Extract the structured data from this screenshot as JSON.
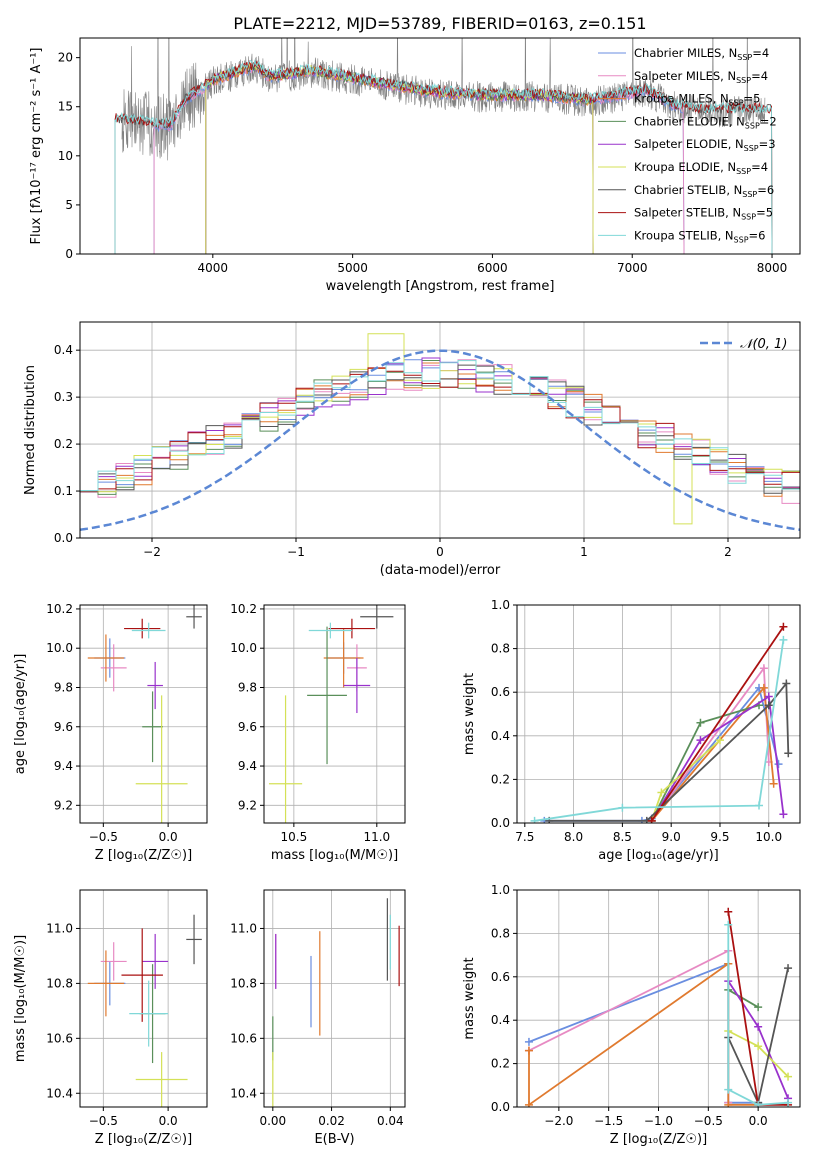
{
  "figure_title": "PLATE=2212, MJD=53789, FIBERID=0163, z=0.151",
  "colors": [
    "#6a8ee0",
    "#e78ac3",
    "#e07a2f",
    "#5a8f5a",
    "#9932cc",
    "#d4e157",
    "#555555",
    "#aa1111",
    "#80d8d8"
  ],
  "chart_data": [
    {
      "id": "spectrum",
      "type": "line",
      "xlabel": "wavelength [Angstrom, rest frame]",
      "ylabel": "Flux [fλ10⁻¹⁷ erg cm⁻² s⁻¹ A⁻¹]",
      "xlim": [
        3050,
        8200
      ],
      "ylim": [
        0,
        22
      ],
      "xticks": [
        4000,
        5000,
        6000,
        7000,
        8000
      ],
      "yticks": [
        0,
        5,
        10,
        15,
        20
      ],
      "grid": false,
      "legend_position": "upper-right",
      "legend": [
        {
          "label": "Chabrier MILES, N",
          "sub": "SSP",
          "tail": "=4"
        },
        {
          "label": "Salpeter MILES, N",
          "sub": "SSP",
          "tail": "=4"
        },
        {
          "label": "Kroupa MILES, N",
          "sub": "SSP",
          "tail": "=5"
        },
        {
          "label": "Chabrier ELODIE, N",
          "sub": "SSP",
          "tail": "=2"
        },
        {
          "label": "Salpeter ELODIE, N",
          "sub": "SSP",
          "tail": "=3"
        },
        {
          "label": "Kroupa ELODIE, N",
          "sub": "SSP",
          "tail": "=4"
        },
        {
          "label": "Chabrier STELIB, N",
          "sub": "SSP",
          "tail": "=6"
        },
        {
          "label": "Salpeter STELIB, N",
          "sub": "SSP",
          "tail": "=5"
        },
        {
          "label": "Kroupa STELIB, N",
          "sub": "SSP",
          "tail": "=6"
        }
      ],
      "data_color": "#808080",
      "data_range": [
        3350,
        7950
      ],
      "model_continuum": {
        "x": [
          3350,
          3600,
          3700,
          3800,
          3900,
          4000,
          4100,
          4200,
          4300,
          4400,
          4500,
          4700,
          4900,
          5100,
          5300,
          5500,
          5700,
          5900,
          6100,
          6300,
          6500,
          6700,
          6900,
          7100,
          7300,
          7500
        ],
        "y": [
          13.5,
          13.0,
          13.0,
          15.5,
          16.5,
          17.5,
          18.0,
          18.5,
          19.0,
          18.0,
          18.0,
          18.5,
          18.0,
          17.5,
          17.0,
          16.5,
          16.2,
          16.0,
          16.0,
          16.0,
          15.8,
          15.5,
          16.0,
          16.5,
          15.0,
          14.5
        ]
      },
      "model_ranges": [
        [
          3580,
          7370
        ],
        [
          3580,
          7370
        ],
        [
          3950,
          6720
        ],
        [
          3950,
          6720
        ],
        [
          3950,
          6720
        ],
        [
          3950,
          6720
        ],
        [
          3300,
          8000
        ],
        [
          3300,
          8000
        ],
        [
          3300,
          8000
        ]
      ]
    },
    {
      "id": "residuals",
      "type": "histogram",
      "xlabel": "(data-model)/error",
      "ylabel": "Normed distribution",
      "xlim": [
        -2.5,
        2.5
      ],
      "ylim": [
        0,
        0.46
      ],
      "xticks": [
        -2,
        -1,
        0,
        1,
        2
      ],
      "yticks": [
        0.0,
        0.1,
        0.2,
        0.3,
        0.4
      ],
      "grid": true,
      "legend_position": "upper-right",
      "gaussian_label": "𝒩(0, 1)",
      "bins": 40,
      "gaussian_color": "#5b87d4"
    },
    {
      "id": "z-age",
      "type": "scatter-errorbar",
      "xlabel": "Z [log₁₀(Z/Z☉)]",
      "ylabel": "age  [log₁₀(age/yr)]",
      "xlim": [
        -0.68,
        0.3
      ],
      "ylim": [
        9.11,
        10.22
      ],
      "xticks": [
        -0.5,
        0.0
      ],
      "yticks": [
        9.2,
        9.4,
        9.6,
        9.8,
        10.0,
        10.2
      ],
      "grid": true,
      "points": [
        {
          "x": -0.45,
          "y": 9.95,
          "xerr": 0.12,
          "yerr": 0.1
        },
        {
          "x": -0.42,
          "y": 9.9,
          "xerr": 0.1,
          "yerr": 0.12
        },
        {
          "x": -0.48,
          "y": 9.95,
          "xerr": 0.14,
          "yerr": 0.12
        },
        {
          "x": -0.12,
          "y": 9.6,
          "xerr": 0.08,
          "yerr": 0.18
        },
        {
          "x": -0.1,
          "y": 9.81,
          "xerr": 0.06,
          "yerr": 0.12
        },
        {
          "x": -0.05,
          "y": 9.31,
          "xerr": 0.2,
          "yerr": 0.45
        },
        {
          "x": 0.2,
          "y": 10.16,
          "xerr": 0.06,
          "yerr": 0.06
        },
        {
          "x": -0.2,
          "y": 10.1,
          "xerr": 0.14,
          "yerr": 0.05
        },
        {
          "x": -0.15,
          "y": 10.09,
          "xerr": 0.13,
          "yerr": 0.04
        }
      ]
    },
    {
      "id": "mass-age",
      "type": "scatter-errorbar",
      "xlabel": "mass [log₁₀(M/M☉)]",
      "ylabel": "",
      "xlim": [
        10.32,
        11.17
      ],
      "ylim": [
        9.11,
        10.22
      ],
      "xticks": [
        10.5,
        11.0
      ],
      "yticks": [
        9.2,
        9.4,
        9.6,
        9.8,
        10.0,
        10.2
      ],
      "grid": true,
      "points": [
        {
          "x": 10.8,
          "y": 9.95,
          "xerr": 0.1,
          "yerr": 0.08
        },
        {
          "x": 10.88,
          "y": 9.9,
          "xerr": 0.06,
          "yerr": 0.12
        },
        {
          "x": 10.8,
          "y": 9.95,
          "xerr": 0.12,
          "yerr": 0.15
        },
        {
          "x": 10.7,
          "y": 9.76,
          "xerr": 0.12,
          "yerr": 0.35
        },
        {
          "x": 10.88,
          "y": 9.81,
          "xerr": 0.08,
          "yerr": 0.14
        },
        {
          "x": 10.45,
          "y": 9.31,
          "xerr": 0.1,
          "yerr": 0.45
        },
        {
          "x": 11.0,
          "y": 10.16,
          "xerr": 0.1,
          "yerr": 0.06
        },
        {
          "x": 10.85,
          "y": 10.1,
          "xerr": 0.14,
          "yerr": 0.05
        },
        {
          "x": 10.72,
          "y": 10.09,
          "xerr": 0.13,
          "yerr": 0.04
        }
      ]
    },
    {
      "id": "age-weight",
      "type": "line",
      "xlabel": "age  [log₁₀(age/yr)]",
      "ylabel": "mass weight",
      "xlim": [
        7.42,
        10.32
      ],
      "ylim": [
        0,
        1.0
      ],
      "xticks": [
        7.5,
        8.0,
        8.5,
        9.0,
        9.5,
        10.0
      ],
      "yticks": [
        0.0,
        0.2,
        0.4,
        0.6,
        0.8,
        1.0
      ],
      "grid": true,
      "series": [
        {
          "x": [
            7.7,
            8.7,
            8.8,
            9.9,
            10.1
          ],
          "y": [
            0.01,
            0.01,
            0.02,
            0.62,
            0.27
          ]
        },
        {
          "x": [
            8.8,
            9.95,
            10.0
          ],
          "y": [
            0.01,
            0.71,
            0.28
          ]
        },
        {
          "x": [
            8.8,
            9.95,
            10.05
          ],
          "y": [
            0.01,
            0.62,
            0.18
          ]
        },
        {
          "x": [
            8.8,
            9.3,
            9.9
          ],
          "y": [
            0.01,
            0.46,
            0.54
          ]
        },
        {
          "x": [
            8.8,
            9.3,
            10.0,
            10.15
          ],
          "y": [
            0.01,
            0.38,
            0.58,
            0.04
          ]
        },
        {
          "x": [
            8.8,
            8.9,
            9.5
          ],
          "y": [
            0.01,
            0.14,
            0.38
          ]
        },
        {
          "x": [
            7.75,
            8.75,
            10.0,
            10.18,
            10.2
          ],
          "y": [
            0.01,
            0.01,
            0.54,
            0.64,
            0.32
          ]
        },
        {
          "x": [
            8.8,
            10.15
          ],
          "y": [
            0.01,
            0.9
          ]
        },
        {
          "x": [
            7.6,
            8.5,
            9.9,
            10.15
          ],
          "y": [
            0.01,
            0.07,
            0.08,
            0.84
          ]
        }
      ]
    },
    {
      "id": "z-mass",
      "type": "scatter-errorbar",
      "xlabel": "Z [log₁₀(Z/Z☉)]",
      "ylabel": "mass [log₁₀(M/M☉)]",
      "xlim": [
        -0.68,
        0.3
      ],
      "ylim": [
        10.35,
        11.14
      ],
      "xticks": [
        -0.5,
        0.0
      ],
      "yticks": [
        10.4,
        10.6,
        10.8,
        11.0
      ],
      "grid": true,
      "points": [
        {
          "x": -0.45,
          "y": 10.8,
          "xerr": 0.12,
          "yerr": 0.08
        },
        {
          "x": -0.42,
          "y": 10.88,
          "xerr": 0.1,
          "yerr": 0.07
        },
        {
          "x": -0.48,
          "y": 10.8,
          "xerr": 0.14,
          "yerr": 0.12
        },
        {
          "x": -0.12,
          "y": 10.69,
          "xerr": 0.1,
          "yerr": 0.18
        },
        {
          "x": -0.1,
          "y": 10.88,
          "xerr": 0.1,
          "yerr": 0.1
        },
        {
          "x": -0.05,
          "y": 10.45,
          "xerr": 0.2,
          "yerr": 0.1
        },
        {
          "x": 0.2,
          "y": 10.96,
          "xerr": 0.06,
          "yerr": 0.09
        },
        {
          "x": -0.2,
          "y": 10.83,
          "xerr": 0.16,
          "yerr": 0.17
        },
        {
          "x": -0.15,
          "y": 10.69,
          "xerr": 0.15,
          "yerr": 0.12
        }
      ]
    },
    {
      "id": "ebv-mass",
      "type": "scatter-errorbar",
      "xlabel": "E(B-V)",
      "ylabel": "",
      "xlim": [
        -0.003,
        0.045
      ],
      "ylim": [
        10.35,
        11.14
      ],
      "xticks": [
        0.0,
        0.02,
        0.04
      ],
      "yticks": [
        10.4,
        10.6,
        10.8,
        11.0
      ],
      "grid": true,
      "points": [
        {
          "x": 0.013,
          "y": 10.77,
          "xerr": 0,
          "yerr": 0.13
        },
        {
          "x": 0.001,
          "y": 10.88,
          "xerr": 0,
          "yerr": 0.1
        },
        {
          "x": 0.016,
          "y": 10.8,
          "xerr": 0,
          "yerr": 0.19
        },
        {
          "x": 0.0,
          "y": 10.6,
          "xerr": 0,
          "yerr": 0.08
        },
        {
          "x": 0.001,
          "y": 10.88,
          "xerr": 0,
          "yerr": 0.1
        },
        {
          "x": 0.0,
          "y": 10.45,
          "xerr": 0,
          "yerr": 0.1
        },
        {
          "x": 0.039,
          "y": 10.96,
          "xerr": 0,
          "yerr": 0.15
        },
        {
          "x": 0.043,
          "y": 10.9,
          "xerr": 0,
          "yerr": 0.11
        },
        {
          "x": 0.04,
          "y": 10.95,
          "xerr": 0,
          "yerr": 0.1
        }
      ]
    },
    {
      "id": "z-weight",
      "type": "line",
      "xlabel": "Z [log₁₀(Z/Z☉)]",
      "ylabel": "mass weight",
      "xlim": [
        -2.42,
        0.42
      ],
      "ylim": [
        0,
        1.0
      ],
      "xticks": [
        -2.0,
        -1.5,
        -1.0,
        -0.5,
        0.0
      ],
      "yticks": [
        0.0,
        0.2,
        0.4,
        0.6,
        0.8,
        1.0
      ],
      "grid": true,
      "series": [
        {
          "x": [
            -2.3,
            -0.3,
            -0.3,
            0.0
          ],
          "y": [
            0.3,
            0.66,
            0.02,
            0.02
          ]
        },
        {
          "x": [
            -2.3,
            -0.3,
            -0.3
          ],
          "y": [
            0.26,
            0.72,
            0.02
          ]
        },
        {
          "x": [
            -2.3,
            -2.3,
            -0.3,
            -0.3,
            0.0
          ],
          "y": [
            0.26,
            0.01,
            0.66,
            0.01,
            0.01
          ]
        },
        {
          "x": [
            -0.3,
            0.0
          ],
          "y": [
            0.54,
            0.46
          ]
        },
        {
          "x": [
            -0.3,
            0.0,
            0.3
          ],
          "y": [
            0.58,
            0.37,
            0.04
          ]
        },
        {
          "x": [
            -0.3,
            0.0,
            0.3
          ],
          "y": [
            0.35,
            0.28,
            0.14
          ]
        },
        {
          "x": [
            -0.3,
            0.0,
            0.3
          ],
          "y": [
            0.32,
            0.02,
            0.64
          ]
        },
        {
          "x": [
            -0.3,
            0.0,
            0.3
          ],
          "y": [
            0.9,
            0.01,
            0.01
          ]
        },
        {
          "x": [
            -0.3,
            -0.3,
            0.0,
            0.3
          ],
          "y": [
            0.84,
            0.08,
            0.01,
            0.02
          ]
        }
      ]
    }
  ]
}
